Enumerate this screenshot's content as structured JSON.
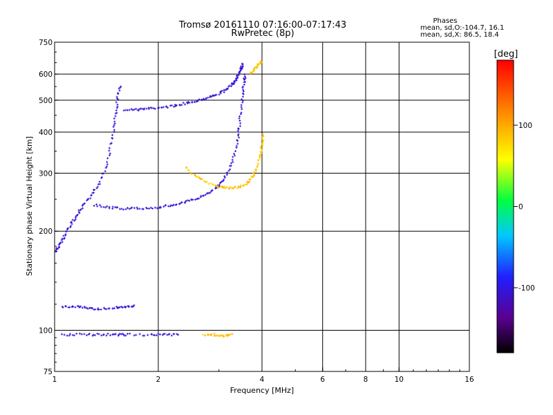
{
  "chart_data": {
    "type": "scatter",
    "title": "Tromsø 20161110 07:16:00-07:17:43",
    "subtitle": "RwPretec (8p)",
    "xlabel": "Frequency [MHz]",
    "ylabel": "Stationary phase Virtual Height [km]",
    "x_scale": "log",
    "y_scale": "log",
    "xlim": [
      1,
      16
    ],
    "ylim": [
      75,
      750
    ],
    "x_ticks": [
      "1",
      "2",
      "4",
      "6",
      "8",
      "10",
      "16"
    ],
    "x_gridlines": [
      2,
      4,
      6,
      8,
      10
    ],
    "y_ticks": [
      "75",
      "100",
      "200",
      "300",
      "400",
      "500",
      "600",
      "750"
    ],
    "y_gridlines": [
      100,
      200,
      300,
      400,
      500,
      600
    ],
    "grid": true,
    "legend": {
      "title": "Phases",
      "line1": "mean, sd,O:-104.7, 16.1",
      "line2": "mean, sd,X:  86.5, 18.4"
    },
    "colorbar": {
      "label": "[deg]",
      "ticks": [
        "100",
        "0",
        "-100"
      ],
      "tick_values": [
        100,
        0,
        -100
      ],
      "range": [
        -180,
        180
      ]
    },
    "traces": [
      {
        "name": "",
        "mode": "O",
        "points": [
          [
            1.6,
            468
          ],
          [
            1.75,
            468
          ],
          [
            1.9,
            472
          ],
          [
            2.1,
            476
          ],
          [
            2.3,
            484
          ],
          [
            2.5,
            494
          ],
          [
            2.7,
            504
          ],
          [
            2.9,
            516
          ],
          [
            3.1,
            532
          ],
          [
            3.25,
            552
          ],
          [
            3.35,
            575
          ],
          [
            3.42,
            600
          ],
          [
            3.48,
            625
          ],
          [
            3.52,
            645
          ]
        ]
      },
      {
        "name": "",
        "mode": "O",
        "points": [
          [
            1.3,
            240
          ],
          [
            1.45,
            236
          ],
          [
            1.6,
            234
          ],
          [
            1.8,
            235
          ],
          [
            2.0,
            236
          ],
          [
            2.2,
            240
          ],
          [
            2.4,
            245
          ],
          [
            2.6,
            252
          ],
          [
            2.8,
            262
          ],
          [
            3.0,
            275
          ],
          [
            3.15,
            295
          ],
          [
            3.3,
            330
          ],
          [
            3.4,
            380
          ],
          [
            3.45,
            430
          ],
          [
            3.5,
            500
          ],
          [
            3.55,
            560
          ],
          [
            3.58,
            600
          ]
        ]
      },
      {
        "name": "",
        "mode": "O",
        "points": [
          [
            1.0,
            172
          ],
          [
            1.03,
            180
          ],
          [
            1.06,
            190
          ],
          [
            1.1,
            205
          ],
          [
            1.15,
            220
          ],
          [
            1.2,
            236
          ],
          [
            1.27,
            255
          ],
          [
            1.35,
            280
          ],
          [
            1.42,
            320
          ],
          [
            1.47,
            380
          ],
          [
            1.5,
            440
          ],
          [
            1.52,
            500
          ],
          [
            1.55,
            560
          ]
        ]
      },
      {
        "name": "",
        "mode": "O",
        "points": [
          [
            1.05,
            118
          ],
          [
            1.15,
            118
          ],
          [
            1.25,
            117
          ],
          [
            1.35,
            116
          ],
          [
            1.5,
            117
          ],
          [
            1.6,
            118
          ],
          [
            1.72,
            119
          ]
        ]
      },
      {
        "name": "",
        "mode": "O",
        "points": [
          [
            1.05,
            97
          ],
          [
            1.2,
            97
          ],
          [
            1.35,
            97
          ],
          [
            1.5,
            97
          ],
          [
            1.6,
            97
          ],
          [
            1.9,
            97
          ],
          [
            2.1,
            97
          ],
          [
            2.3,
            97
          ]
        ]
      },
      {
        "name": "",
        "mode": "X",
        "points": [
          [
            2.4,
            312
          ],
          [
            2.6,
            292
          ],
          [
            2.8,
            280
          ],
          [
            3.0,
            273
          ],
          [
            3.2,
            270
          ],
          [
            3.4,
            272
          ],
          [
            3.6,
            278
          ],
          [
            3.75,
            292
          ],
          [
            3.85,
            310
          ],
          [
            3.95,
            340
          ],
          [
            4.0,
            370
          ],
          [
            4.05,
            400
          ]
        ]
      },
      {
        "name": "",
        "mode": "X",
        "points": [
          [
            3.7,
            600
          ],
          [
            3.8,
            620
          ],
          [
            3.9,
            640
          ],
          [
            4.0,
            655
          ]
        ]
      },
      {
        "name": "",
        "mode": "X",
        "points": [
          [
            2.7,
            97
          ],
          [
            2.9,
            97
          ],
          [
            3.1,
            96
          ],
          [
            3.3,
            97
          ]
        ]
      }
    ]
  }
}
